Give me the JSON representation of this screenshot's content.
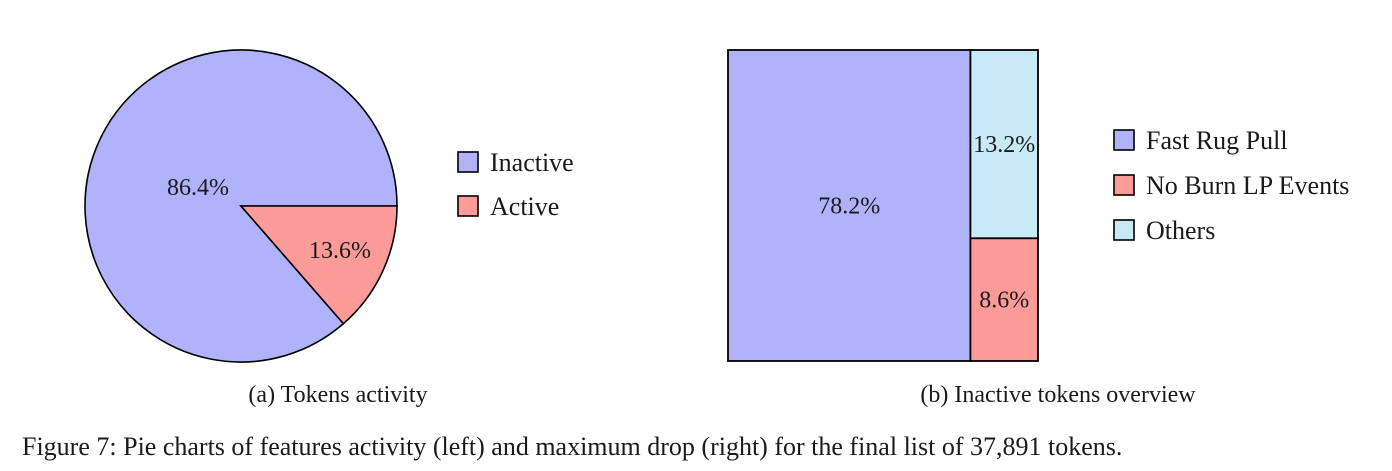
{
  "figure_caption": "Figure 7: Pie charts of features activity (left) and maximum drop (right) for the final list of 37,891 tokens.",
  "chart_data": [
    {
      "type": "pie",
      "caption": "(a) Tokens activity",
      "slices": [
        {
          "label": "Inactive",
          "value": 86.4,
          "value_label": "86.4%",
          "color": "#b0b2fb"
        },
        {
          "label": "Active",
          "value": 13.6,
          "value_label": "13.6%",
          "color": "#fd9b99"
        }
      ],
      "legend_position": "right",
      "edge_color": "#000000"
    },
    {
      "type": "treemap",
      "caption": "(b) Inactive tokens overview",
      "cells": [
        {
          "label": "Fast Rug Pull",
          "value": 78.2,
          "value_label": "78.2%",
          "color": "#b0b2fb"
        },
        {
          "label": "No Burn LP Events",
          "value": 8.6,
          "value_label": "8.6%",
          "color": "#fd9b99"
        },
        {
          "label": "Others",
          "value": 13.2,
          "value_label": "13.2%",
          "color": "#c7eaf6"
        }
      ],
      "legend_position": "right",
      "edge_color": "#000000"
    }
  ]
}
